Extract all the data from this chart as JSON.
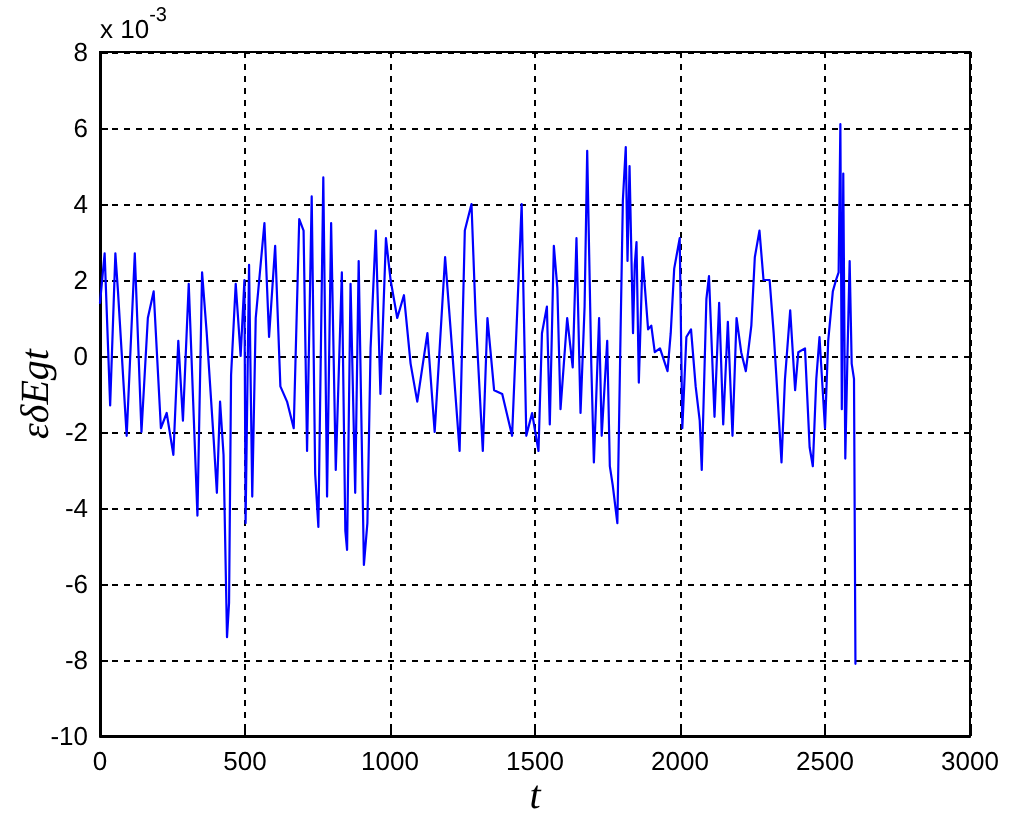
{
  "chart_data": {
    "type": "line",
    "xlabel": "t",
    "ylabel": "εδEgt",
    "annotations": [
      "x 10$^{-3}$"
    ],
    "color": "#0000ff",
    "grid": true,
    "marker": "none",
    "line_style": "solid",
    "xlim": [
      0,
      3000
    ],
    "xticks": [
      0,
      500,
      1000,
      1500,
      2000,
      2500,
      3000
    ],
    "ylim": [
      -10,
      8
    ],
    "yticks": [
      {
        "value": -10,
        "label": "-10"
      },
      -8,
      -6,
      -4,
      -2,
      0,
      2,
      4,
      6,
      8
    ],
    "x": [
      0,
      16,
      35,
      53,
      62,
      92,
      120,
      143,
      165,
      185,
      210,
      230,
      253,
      270,
      286,
      306,
      336,
      352,
      368,
      392,
      403,
      414,
      426,
      438,
      445,
      452,
      468,
      485,
      498,
      502,
      514,
      525,
      537,
      567,
      583,
      604,
      622,
      645,
      668,
      687,
      702,
      714,
      730,
      742,
      753,
      770,
      783,
      797,
      813,
      834,
      846,
      852,
      864,
      880,
      892,
      910,
      922,
      933,
      951,
      967,
      986,
      1002,
      1025,
      1048,
      1071,
      1094,
      1129,
      1154,
      1190,
      1209,
      1240,
      1258,
      1281,
      1295,
      1320,
      1336,
      1359,
      1387,
      1421,
      1454,
      1470,
      1490,
      1512,
      1524,
      1541,
      1551,
      1565,
      1577,
      1588,
      1611,
      1630,
      1643,
      1657,
      1671,
      1680,
      1694,
      1703,
      1721,
      1730,
      1749,
      1758,
      1768,
      1784,
      1795,
      1803,
      1813,
      1819,
      1826,
      1838,
      1844,
      1850,
      1858,
      1871,
      1890,
      1901,
      1913,
      1931,
      1957,
      1968,
      1980,
      1999,
      2008,
      2022,
      2038,
      2054,
      2068,
      2075,
      2091,
      2100,
      2119,
      2135,
      2149,
      2165,
      2181,
      2195,
      2211,
      2227,
      2246,
      2258,
      2274,
      2288,
      2309,
      2323,
      2332,
      2350,
      2362,
      2380,
      2397,
      2408,
      2431,
      2447,
      2458,
      2470,
      2481,
      2500,
      2511,
      2527,
      2538,
      2547,
      2553,
      2558,
      2563,
      2570,
      2578,
      2585,
      2592,
      2600,
      2605
    ],
    "values": [
      1.4,
      2.7,
      -1.3,
      2.7,
      1.7,
      -2.1,
      2.7,
      -2.0,
      1.0,
      1.7,
      -1.9,
      -1.5,
      -2.6,
      0.4,
      -1.7,
      1.9,
      -4.2,
      2.2,
      0.6,
      -2.2,
      -3.6,
      -1.2,
      -2.6,
      -7.4,
      -6.5,
      -0.5,
      1.9,
      0.0,
      2.0,
      -4.4,
      2.4,
      -3.7,
      1.0,
      3.5,
      0.5,
      2.9,
      -0.8,
      -1.2,
      -1.9,
      3.6,
      3.3,
      -2.5,
      4.2,
      -3.1,
      -4.5,
      4.7,
      -3.7,
      3.5,
      -3.0,
      2.2,
      -4.6,
      -5.1,
      1.9,
      -3.6,
      2.5,
      -5.5,
      -4.4,
      0.2,
      3.3,
      -1.0,
      3.1,
      2.0,
      1.0,
      1.6,
      -0.2,
      -1.2,
      0.6,
      -2.0,
      2.6,
      0.7,
      -2.5,
      3.3,
      4.0,
      1.1,
      -2.5,
      1.0,
      -0.9,
      -1.0,
      -2.1,
      4.0,
      -2.1,
      -1.5,
      -2.5,
      0.6,
      1.3,
      -1.8,
      2.9,
      1.8,
      -1.4,
      1.0,
      -0.3,
      3.1,
      -1.5,
      1.3,
      5.4,
      -0.2,
      -2.8,
      1.0,
      -2.1,
      0.4,
      -2.9,
      -3.4,
      -4.4,
      0.6,
      4.1,
      5.5,
      2.5,
      5.0,
      0.6,
      2.4,
      3.0,
      -0.7,
      2.6,
      0.7,
      0.8,
      0.1,
      0.2,
      -0.4,
      0.6,
      2.3,
      3.1,
      -1.9,
      0.5,
      0.7,
      -0.8,
      -1.7,
      -3.0,
      1.5,
      2.1,
      -1.6,
      1.4,
      -1.8,
      0.9,
      -2.1,
      1.0,
      0.1,
      -0.4,
      0.8,
      2.6,
      3.3,
      2.0,
      2.0,
      0.6,
      -0.5,
      -2.8,
      -0.6,
      1.2,
      -0.9,
      0.1,
      0.2,
      -2.4,
      -2.9,
      -0.6,
      0.5,
      -1.9,
      0.4,
      1.7,
      2.0,
      2.2,
      6.1,
      -1.4,
      4.8,
      -2.7,
      0.2,
      2.5,
      -0.2,
      -0.6,
      -8.1
    ]
  }
}
